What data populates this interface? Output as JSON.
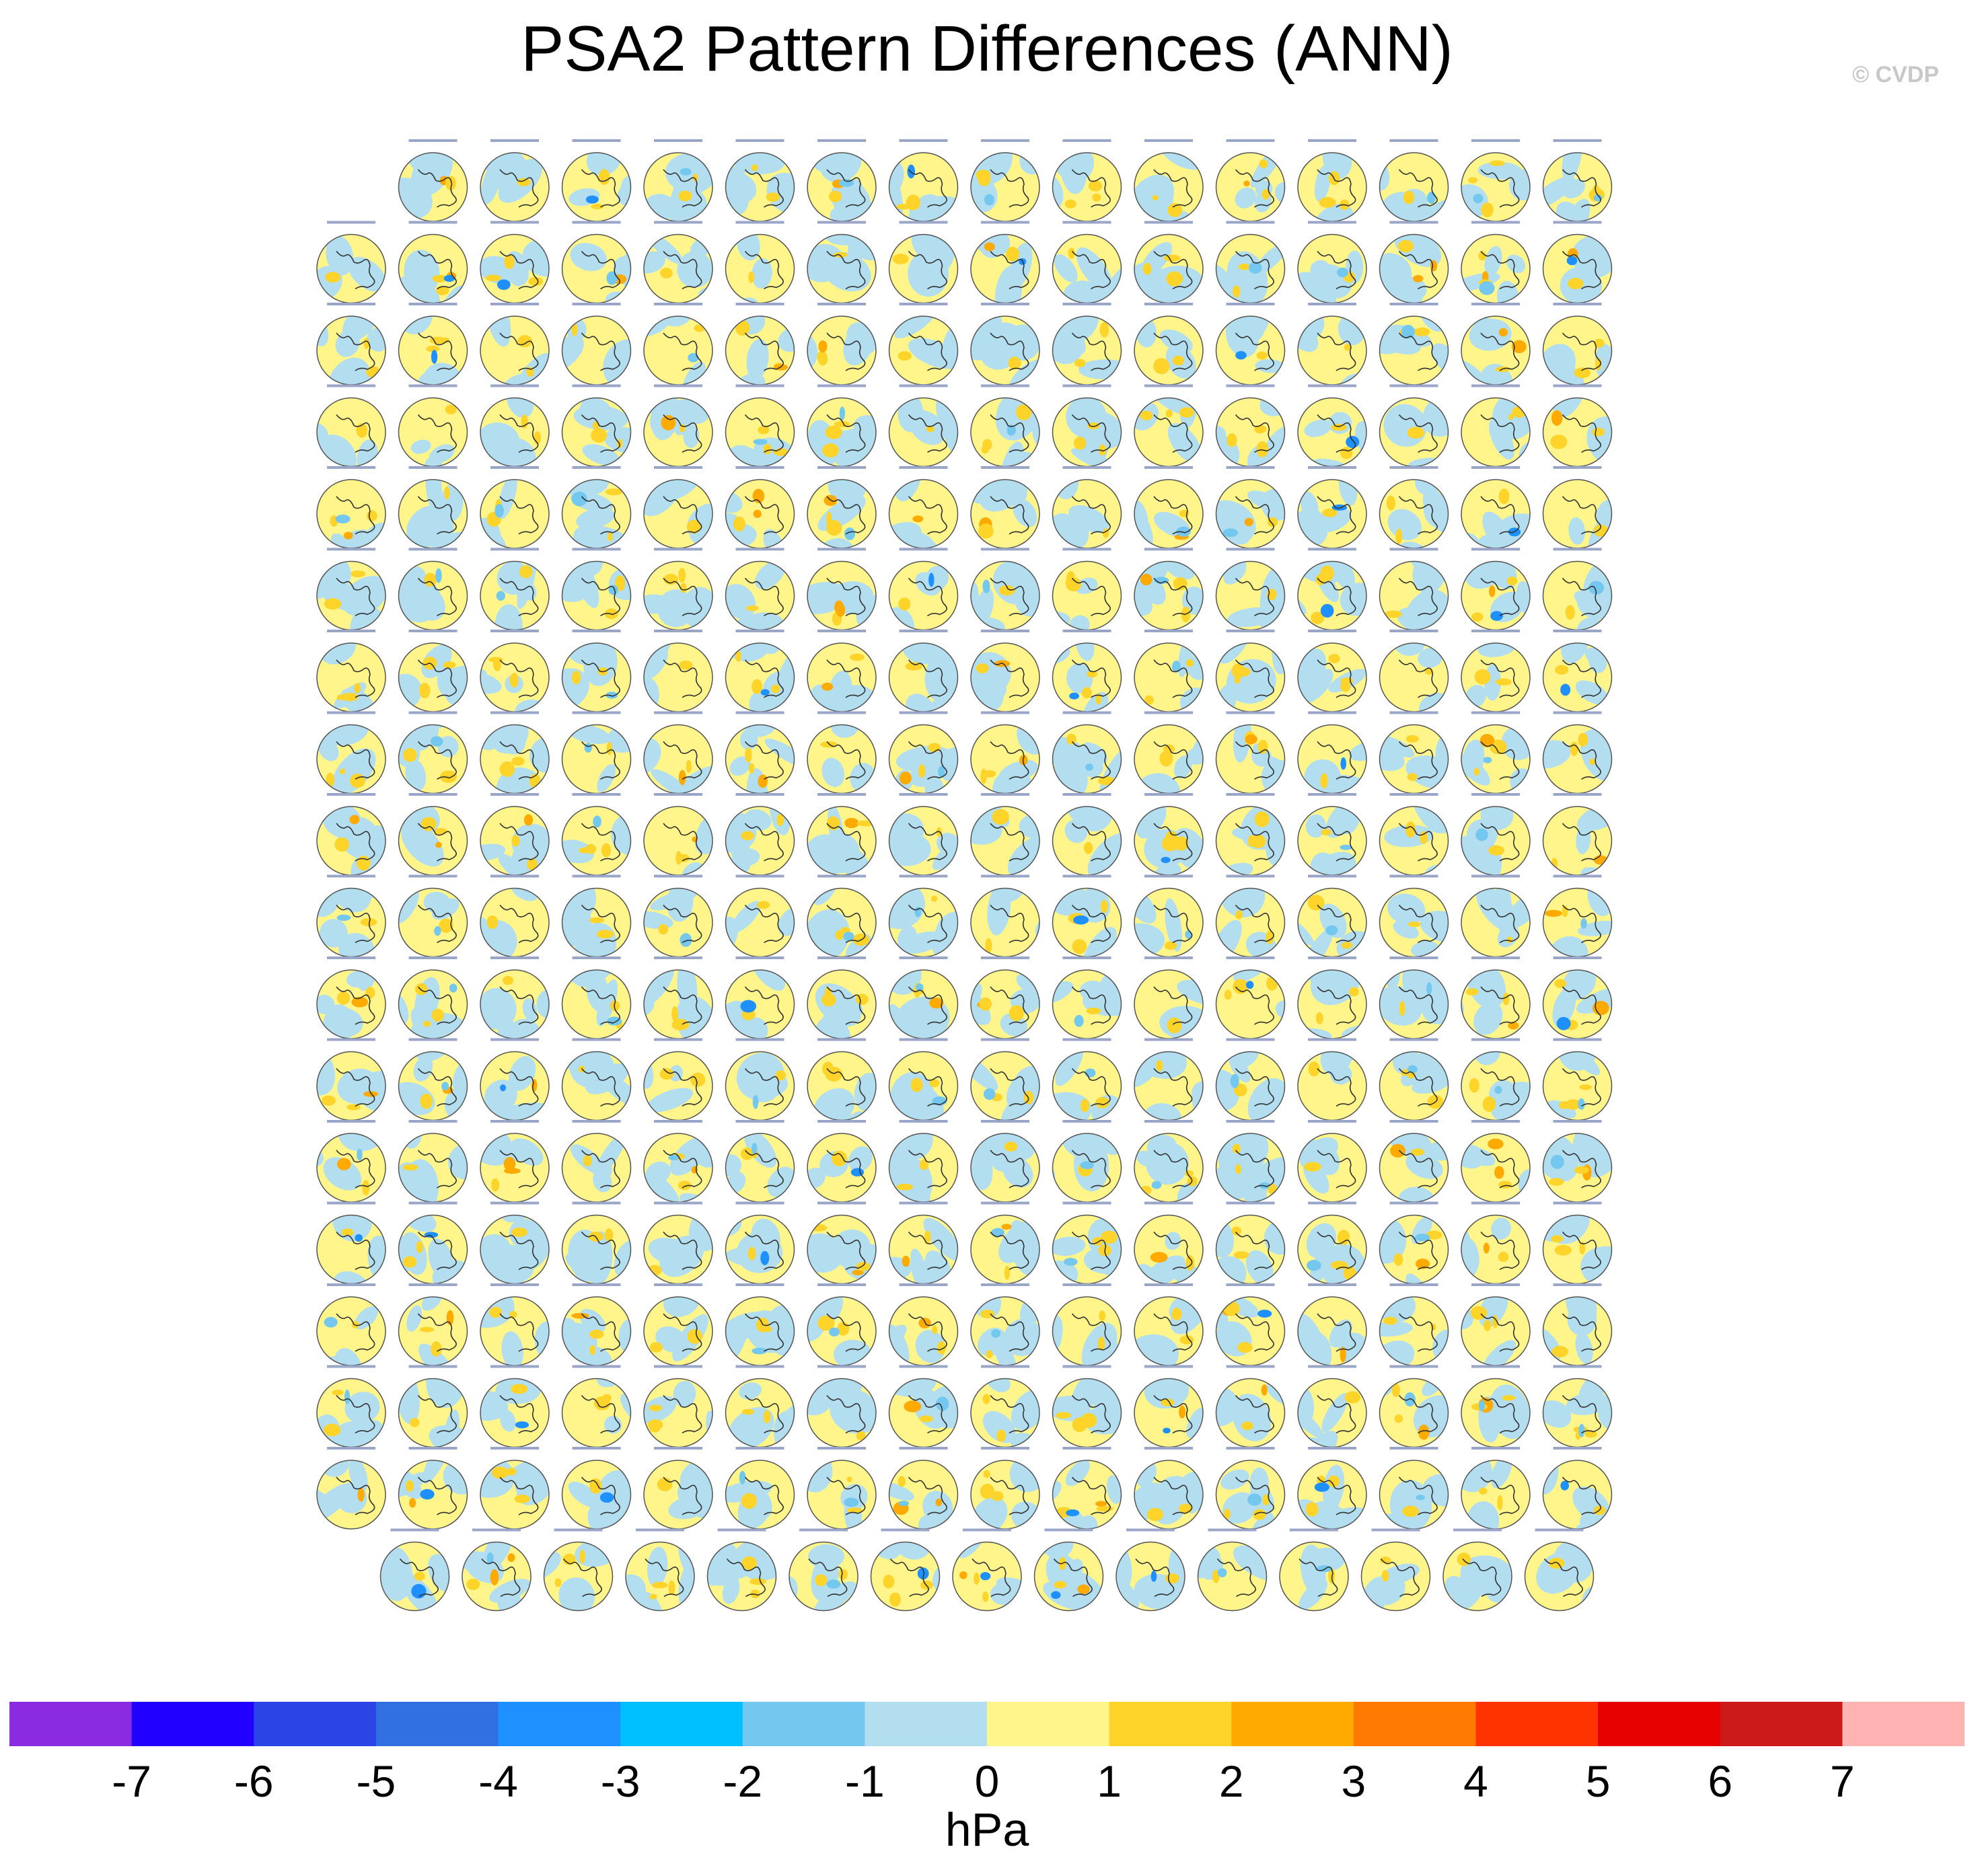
{
  "header": {
    "title": "PSA2 Pattern Differences (ANN)",
    "credit": "© CVDP"
  },
  "chart_data": {
    "type": "heatmap",
    "title": "PSA2 Pattern Differences (ANN)",
    "description_grid": {
      "rows": [
        15,
        16,
        16,
        16,
        16,
        16,
        16,
        16,
        16,
        16,
        16,
        16,
        16,
        16,
        16,
        16,
        16,
        15
      ]
    },
    "colorbar": {
      "units": "hPa",
      "tick_labels": [
        "-7",
        "-6",
        "-5",
        "-4",
        "-3",
        "-2",
        "-1",
        "0",
        "1",
        "2",
        "3",
        "4",
        "5",
        "6",
        "7"
      ],
      "colors": [
        "#8a2be2",
        "#2200ff",
        "#2a44e6",
        "#3070e0",
        "#1e90ff",
        "#00bfff",
        "#74c8f0",
        "#b2def0",
        "#fff58a",
        "#ffd42a",
        "#ffaa00",
        "#ff7a00",
        "#ff3300",
        "#e60000",
        "#cc1a1a",
        "#ffb3b3"
      ]
    },
    "panel_colors": {
      "positive": "#fff58a",
      "negative": "#b2def0",
      "strong_positive": "#ffd42a",
      "strong_negative": "#74c8f0",
      "extreme_negative": "#1e90ff",
      "extreme_positive": "#ffaa00"
    }
  }
}
